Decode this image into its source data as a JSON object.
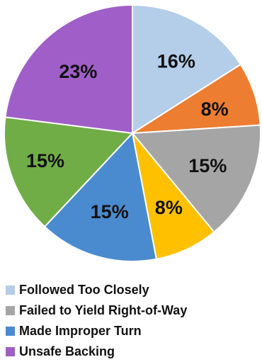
{
  "chart_data": {
    "type": "pie",
    "title": "",
    "start_angle_deg": 0,
    "direction": "clockwise",
    "slices": [
      {
        "label": "Followed Too Closely",
        "value": 16,
        "display": "16%",
        "color": "#b4cde8"
      },
      {
        "label": "",
        "value": 8,
        "display": "8%",
        "color": "#ed7d31"
      },
      {
        "label": "Failed to Yield Right-of-Way",
        "value": 15,
        "display": "15%",
        "color": "#a5a5a5"
      },
      {
        "label": "",
        "value": 8,
        "display": "8%",
        "color": "#ffc000"
      },
      {
        "label": "Made Improper Turn",
        "value": 15,
        "display": "15%",
        "color": "#4a8bd0"
      },
      {
        "label": "",
        "value": 15,
        "display": "15%",
        "color": "#70ad47"
      },
      {
        "label": "Unsafe Backing",
        "value": 23,
        "display": "23%",
        "color": "#a05fc8"
      }
    ],
    "legend": {
      "placement": "bottom",
      "entries": [
        {
          "label": "Followed Too Closely",
          "color": "#b4cde8"
        },
        {
          "label": "Failed to Yield Right-of-Way",
          "color": "#a5a5a5"
        },
        {
          "label": "Made Improper Turn",
          "color": "#4a8bd0"
        },
        {
          "label": "Unsafe Backing",
          "color": "#a05fc8"
        }
      ]
    }
  }
}
